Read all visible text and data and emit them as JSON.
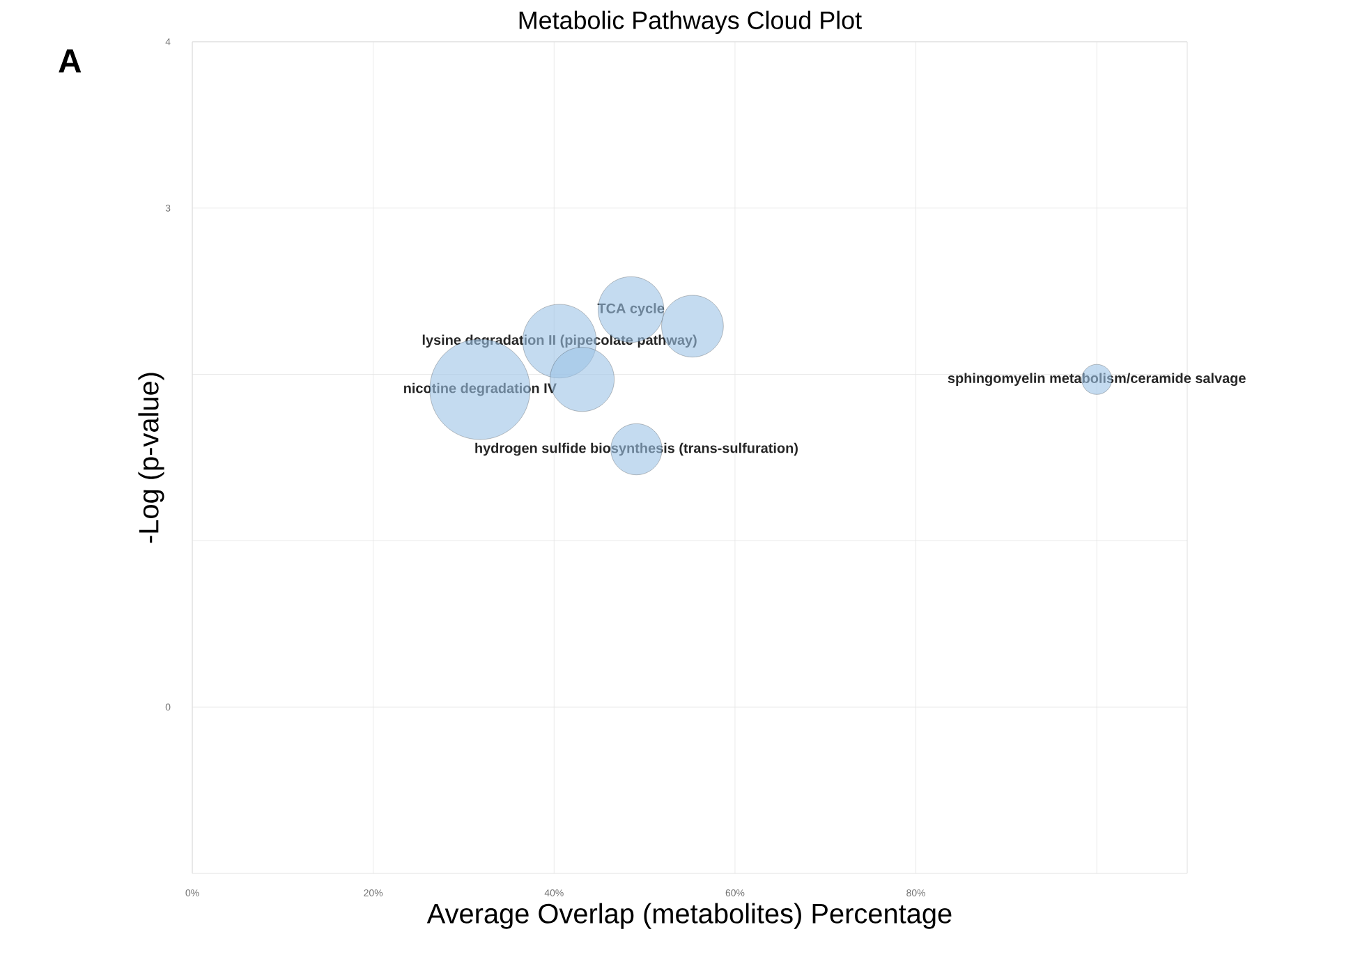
{
  "chart_data": {
    "type": "bubble",
    "title": "Metabolic Pathways Cloud Plot",
    "xlabel": "Average Overlap (metabolites) Percentage",
    "ylabel": "-Log (p-value)",
    "annotations": [
      "A",
      {
        "text": "TCA cycle",
        "x": 48.5,
        "y": 2.39
      },
      {
        "text": "lysine degradation II (pipecolate pathway)",
        "x": 40.6,
        "y": 2.2
      },
      {
        "text": "nicotine degradation IV",
        "x": 31.8,
        "y": 1.91
      },
      {
        "text": "hydrogen sulfide biosynthesis (trans-sulfuration)",
        "x": 49.1,
        "y": 1.55
      },
      {
        "text": "sphingomyelin metabolism/ceramide salvage",
        "x": 100,
        "y": 1.97
      }
    ],
    "series": [
      {
        "color": "#9dc3e6",
        "x": [
          31.8,
          40.6,
          43.1,
          48.5,
          55.3,
          49.1,
          100
        ],
        "values": [
          1.91,
          2.2,
          1.97,
          2.39,
          2.29,
          1.55,
          1.97
        ],
        "sizes": [
          1,
          0.54,
          0.41,
          0.43,
          0.38,
          0.26,
          0.09
        ]
      }
    ],
    "xlim": [
      0,
      110
    ],
    "ylim": [
      -1,
      4
    ],
    "xticks": [
      {
        "value": 0,
        "label": "0%"
      },
      {
        "value": 20,
        "label": "20%"
      },
      {
        "value": 40,
        "label": "40%"
      },
      {
        "value": 60,
        "label": "60%"
      },
      {
        "value": 80,
        "label": "80%"
      },
      {
        "value": 100,
        "label": null
      }
    ],
    "yticks": [
      0,
      {
        "value": 1,
        "label": null
      },
      {
        "value": 2,
        "label": null
      },
      3,
      4
    ],
    "grid": true
  }
}
